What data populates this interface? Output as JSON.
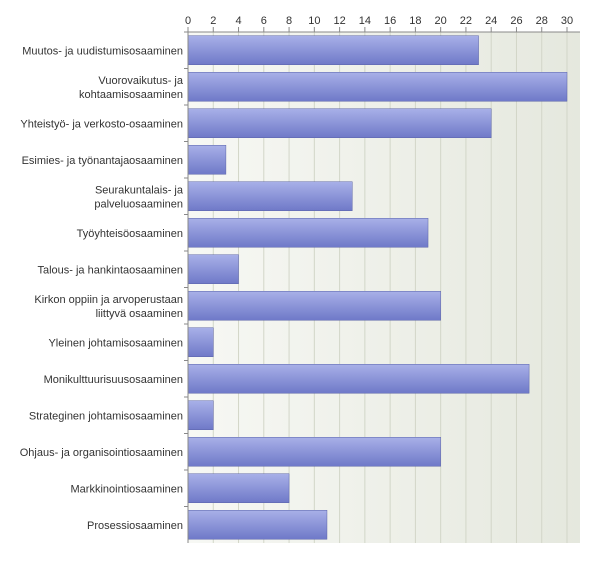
{
  "chart_data": {
    "type": "bar",
    "orientation": "horizontal",
    "title": "",
    "xlabel": "",
    "ylabel": "",
    "xlim": [
      0,
      30
    ],
    "x_ticks": [
      0,
      2,
      4,
      6,
      8,
      10,
      12,
      14,
      16,
      18,
      20,
      22,
      24,
      26,
      28,
      30
    ],
    "x_axis_position": "top",
    "grid": true,
    "legend": "none",
    "categories": [
      [
        "Muutos- ja uudistumisosaaminen"
      ],
      [
        "Vuorovaikutus- ja",
        "kohtaamisosaaminen"
      ],
      [
        "Yhteistyö- ja verkosto-osaaminen"
      ],
      [
        "Esimies- ja työnantajaosaaminen"
      ],
      [
        "Seurakuntalais- ja",
        "palveluosaaminen"
      ],
      [
        "Työyhteisöosaaminen"
      ],
      [
        "Talous- ja hankintaosaaminen"
      ],
      [
        "Kirkon oppiin ja arvoperustaan",
        "liittyvä osaaminen"
      ],
      [
        "Yleinen johtamisosaaminen"
      ],
      [
        "Monikulttuurisuusosaaminen"
      ],
      [
        "Strateginen johtamisosaaminen"
      ],
      [
        "Ohjaus- ja organisointiosaaminen"
      ],
      [
        "Markkinointiosaaminen"
      ],
      [
        "Prosessiosaaminen"
      ]
    ],
    "values": [
      23,
      30,
      24,
      3,
      13,
      19,
      4,
      20,
      2,
      27,
      2,
      20,
      8,
      11
    ],
    "colors": {
      "bar_top": "#a8b0e8",
      "bar_bottom": "#6f79c8",
      "bar_stroke": "#5a63a8",
      "plot_bg_left": "#f7f8f4",
      "plot_bg_right": "#e5e8de",
      "grid": "#d2d6c8",
      "axis": "#888888"
    }
  }
}
